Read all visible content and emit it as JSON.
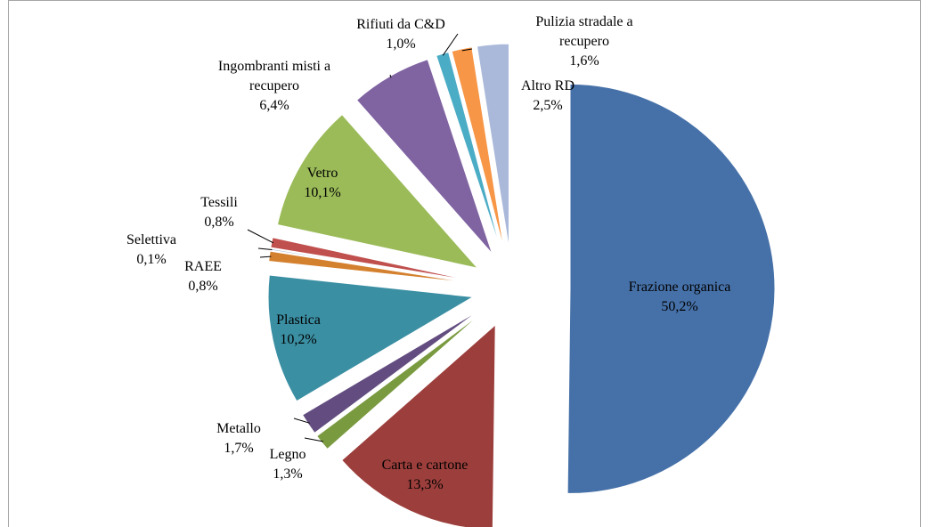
{
  "chart_data": {
    "type": "pie",
    "categories": [
      "Frazione organica",
      "Carta e cartone",
      "Legno",
      "Metallo",
      "Plastica",
      "RAEE",
      "Selettiva",
      "Tessili",
      "Vetro",
      "Ingombranti misti a recupero",
      "Rifiuti da C&D",
      "Pulizia stradale a recupero",
      "Altro RD"
    ],
    "values": [
      50.2,
      13.3,
      1.3,
      1.7,
      10.2,
      0.8,
      0.1,
      0.8,
      10.1,
      6.4,
      1.0,
      1.6,
      2.5
    ],
    "value_labels": [
      "50,2%",
      "13,3%",
      "1,3%",
      "1,7%",
      "10,2%",
      "0,8%",
      "0,1%",
      "0,8%",
      "10,1%",
      "6,4%",
      "1,0%",
      "1,6%",
      "2,5%"
    ],
    "colors": [
      "#4671a8",
      "#9c3f3c",
      "#7a9a40",
      "#634d80",
      "#3b8fa3",
      "#d4812f",
      "#8fa9d3",
      "#c0504d",
      "#9bbb59",
      "#8064a2",
      "#4bacc6",
      "#f79646",
      "#aab9da"
    ]
  }
}
